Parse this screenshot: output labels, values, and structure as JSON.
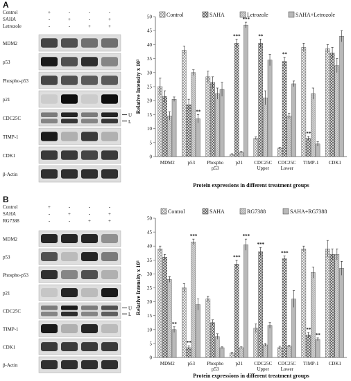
{
  "panels": [
    {
      "label": "A",
      "blot": {
        "treatments": [
          {
            "name": "Control",
            "marks": [
              "+",
              "-",
              "-",
              "-"
            ]
          },
          {
            "name": "SAHA",
            "marks": [
              "-",
              "+",
              "-",
              "+"
            ]
          },
          {
            "name": "Letrozole",
            "marks": [
              "-",
              "-",
              "+",
              "+"
            ]
          }
        ],
        "rows": [
          "MDM2",
          "p53",
          "Phospho-p53",
          "p21",
          "CDC25C",
          "TIMP-1",
          "CDK1",
          "β-Actin"
        ],
        "band_intensity": [
          [
            0.75,
            0.7,
            0.55,
            0.55
          ],
          [
            0.95,
            0.7,
            0.85,
            0.45
          ],
          [
            0.75,
            0.7,
            0.65,
            0.65
          ],
          [
            0.12,
            1.0,
            0.12,
            1.0
          ],
          [
            0.5,
            0.9,
            0.5,
            0.9
          ],
          [
            0.95,
            0.25,
            0.8,
            0.25
          ],
          [
            0.8,
            0.8,
            0.75,
            0.8
          ],
          [
            0.85,
            0.85,
            0.85,
            0.85
          ]
        ],
        "doublet_row": "CDC25C",
        "doublet_markers": [
          "U",
          "L"
        ]
      },
      "chart_data": {
        "type": "bar",
        "categories": [
          "MDM2",
          "p53",
          "Phospho\np53",
          "p21",
          "CDC25C\nUpper",
          "CDC25C\nLower",
          "TIMP-1",
          "CDK1"
        ],
        "series": [
          {
            "name": "Control",
            "values": [
              25,
              38,
              28.5,
              0.7,
              6.5,
              3,
              39,
              38.5
            ],
            "errors": [
              3,
              1.5,
              2,
              0.3,
              0.5,
              0.3,
              1.5,
              1.5
            ],
            "sig": [
              "",
              "",
              "",
              "",
              "",
              "",
              "",
              ""
            ]
          },
          {
            "name": "SAHA",
            "values": [
              21.5,
              18.5,
              26.5,
              40.5,
              40.5,
              34,
              6.5,
              37
            ],
            "errors": [
              2,
              2,
              2,
              1.5,
              1.5,
              1.5,
              0.7,
              2
            ],
            "sig": [
              "",
              "",
              "",
              "***",
              "**",
              "**",
              "**",
              ""
            ]
          },
          {
            "name": "Letrozole",
            "values": [
              14.5,
              30,
              22.5,
              1.5,
              21,
              14.5,
              22.5,
              32.5
            ],
            "errors": [
              1.5,
              1,
              2,
              0.3,
              2.5,
              1,
              2,
              2.5
            ],
            "sig": [
              "",
              "",
              "",
              "",
              "",
              "",
              "",
              ""
            ]
          },
          {
            "name": "SAHA+Letrozole",
            "values": [
              20.5,
              13.5,
              24,
              47,
              34.5,
              26,
              4.5,
              43
            ],
            "errors": [
              0.8,
              1.5,
              2.5,
              1,
              2,
              1,
              0.8,
              2
            ],
            "sig": [
              "",
              "**",
              "",
              "***",
              "",
              "",
              "",
              ""
            ]
          }
        ],
        "ylabel": "Relative Intensity x 10³",
        "xlabel": "Protein expressions in different treatment groups",
        "ylim": [
          0,
          50
        ],
        "yticks": [
          0,
          5,
          10,
          15,
          20,
          25,
          30,
          35,
          40,
          45,
          50
        ],
        "grid": false,
        "legend": "top"
      }
    },
    {
      "label": "B",
      "blot": {
        "treatments": [
          {
            "name": "Control",
            "marks": [
              "+",
              "-",
              "-",
              "-"
            ]
          },
          {
            "name": "SAHA",
            "marks": [
              "-",
              "+",
              "-",
              "+"
            ]
          },
          {
            "name": "RG7388",
            "marks": [
              "-",
              "-",
              "+",
              "+"
            ]
          }
        ],
        "rows": [
          "MDM2",
          "p53",
          "Phospho-p53",
          "p21",
          "CDC25C",
          "TIMP-1",
          "CDK1",
          "β-Actin"
        ],
        "band_intensity": [
          [
            0.9,
            0.9,
            0.9,
            0.4
          ],
          [
            0.7,
            0.2,
            0.9,
            0.5
          ],
          [
            0.85,
            0.45,
            0.7,
            0.25
          ],
          [
            0.15,
            0.9,
            0.2,
            0.95
          ],
          [
            0.5,
            0.95,
            0.5,
            0.7
          ],
          [
            0.95,
            0.25,
            0.9,
            0.2
          ],
          [
            0.8,
            0.8,
            0.8,
            0.8
          ],
          [
            0.85,
            0.85,
            0.85,
            0.85
          ]
        ],
        "doublet_row": "CDC25C",
        "doublet_markers": [
          "U",
          "L"
        ]
      },
      "chart_data": {
        "type": "bar",
        "categories": [
          "MDM2",
          "p53",
          "Phospho\np53",
          "p21",
          "CDC25C\nUpper",
          "CDC25C\nLower",
          "TIMP-1",
          "CDK1"
        ],
        "series": [
          {
            "name": "Control",
            "values": [
              39,
              25,
              21,
              1.5,
              10.5,
              3.5,
              39,
              39
            ],
            "errors": [
              1,
              1.5,
              1,
              0.3,
              1.5,
              0.5,
              1,
              3
            ]
          },
          {
            "name": "SAHA",
            "values": [
              36,
              3.5,
              12.5,
              33.5,
              38,
              35.5,
              8,
              37
            ],
            "errors": [
              1,
              0.7,
              1,
              1.5,
              1.5,
              1,
              1,
              2
            ],
            "sig": [
              "",
              "**",
              "",
              "***",
              "***",
              "***",
              "**",
              ""
            ]
          },
          {
            "name": "RG7388",
            "values": [
              28,
              41.5,
              7.5,
              3.5,
              4.5,
              4,
              30.5,
              37
            ],
            "errors": [
              1,
              1,
              1,
              0.3,
              0.5,
              0.3,
              2,
              2
            ],
            "sig": [
              "",
              "***",
              "",
              "",
              "",
              "",
              "",
              ""
            ]
          },
          {
            "name": "SAHA+RG7388",
            "values": [
              10,
              19,
              3.5,
              40.5,
              11.5,
              21,
              6.5,
              32
            ],
            "errors": [
              1,
              2,
              0.3,
              2,
              1,
              3,
              0.5,
              2.5
            ],
            "sig": [
              "**",
              "",
              "",
              "***",
              "",
              "",
              "**",
              ""
            ]
          }
        ],
        "ylabel": "Relative Intensity x 10³",
        "xlabel": "Protein expressions in different treatment groups",
        "ylim": [
          0,
          50
        ],
        "yticks": [
          0,
          5,
          10,
          15,
          20,
          25,
          30,
          35,
          40,
          45,
          50
        ],
        "grid": false,
        "legend": "top"
      }
    }
  ]
}
